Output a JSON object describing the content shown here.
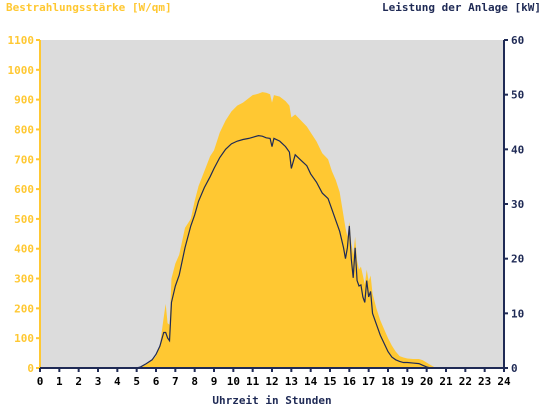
{
  "chart_data": {
    "type": "area",
    "left_axis_label": "Bestrahlungsstärke [W/qm]",
    "right_axis_label": "Leistung der Anlage [kW]",
    "xlabel": "Uhrzeit in Stunden",
    "xlim": [
      0,
      24
    ],
    "ylim_left": [
      0,
      1100
    ],
    "ylim_right": [
      0,
      60
    ],
    "x_ticks": [
      "0",
      "1",
      "2",
      "3",
      "4",
      "5",
      "6",
      "7",
      "8",
      "9",
      "10",
      "11",
      "12",
      "13",
      "14",
      "15",
      "16",
      "17",
      "18",
      "19",
      "20",
      "21",
      "22",
      "23",
      "24"
    ],
    "y_ticks_left": [
      "0",
      "100",
      "200",
      "300",
      "400",
      "500",
      "600",
      "700",
      "800",
      "900",
      "1000",
      "1100"
    ],
    "y_ticks_right": [
      "0",
      "10",
      "20",
      "30",
      "40",
      "50",
      "60"
    ],
    "grid": false,
    "colors": {
      "irradiance_fill": "#FFC832",
      "power_line": "#1F2A55",
      "plot_background": "#DCDCDC",
      "left_axis": "#FFC832",
      "right_axis": "#1F2A55"
    },
    "series": [
      {
        "axis": "left",
        "style": "area",
        "points": [
          [
            0,
            0
          ],
          [
            5.0,
            0
          ],
          [
            5.2,
            3
          ],
          [
            5.5,
            12
          ],
          [
            5.8,
            25
          ],
          [
            6.0,
            40
          ],
          [
            6.2,
            75
          ],
          [
            6.4,
            170
          ],
          [
            6.5,
            215
          ],
          [
            6.6,
            150
          ],
          [
            6.7,
            145
          ],
          [
            6.8,
            300
          ],
          [
            7.0,
            350
          ],
          [
            7.2,
            380
          ],
          [
            7.5,
            470
          ],
          [
            7.8,
            500
          ],
          [
            8.0,
            560
          ],
          [
            8.2,
            610
          ],
          [
            8.5,
            660
          ],
          [
            8.8,
            710
          ],
          [
            9.0,
            730
          ],
          [
            9.3,
            790
          ],
          [
            9.6,
            830
          ],
          [
            9.9,
            860
          ],
          [
            10.2,
            880
          ],
          [
            10.5,
            890
          ],
          [
            10.8,
            905
          ],
          [
            11.0,
            915
          ],
          [
            11.3,
            920
          ],
          [
            11.5,
            925
          ],
          [
            11.7,
            923
          ],
          [
            11.9,
            918
          ],
          [
            12.0,
            890
          ],
          [
            12.1,
            915
          ],
          [
            12.4,
            910
          ],
          [
            12.7,
            895
          ],
          [
            12.9,
            880
          ],
          [
            13.0,
            840
          ],
          [
            13.2,
            850
          ],
          [
            13.5,
            830
          ],
          [
            13.8,
            810
          ],
          [
            14.0,
            790
          ],
          [
            14.3,
            760
          ],
          [
            14.6,
            720
          ],
          [
            14.9,
            700
          ],
          [
            15.1,
            660
          ],
          [
            15.3,
            630
          ],
          [
            15.5,
            590
          ],
          [
            15.7,
            510
          ],
          [
            15.8,
            470
          ],
          [
            15.9,
            440
          ],
          [
            16.0,
            490
          ],
          [
            16.1,
            420
          ],
          [
            16.2,
            380
          ],
          [
            16.3,
            440
          ],
          [
            16.4,
            360
          ],
          [
            16.5,
            330
          ],
          [
            16.6,
            340
          ],
          [
            16.7,
            310
          ],
          [
            16.8,
            280
          ],
          [
            16.9,
            330
          ],
          [
            17.0,
            290
          ],
          [
            17.1,
            310
          ],
          [
            17.2,
            250
          ],
          [
            17.4,
            200
          ],
          [
            17.6,
            160
          ],
          [
            17.8,
            130
          ],
          [
            18.0,
            100
          ],
          [
            18.2,
            75
          ],
          [
            18.4,
            55
          ],
          [
            18.6,
            40
          ],
          [
            18.8,
            35
          ],
          [
            19.0,
            32
          ],
          [
            19.3,
            30
          ],
          [
            19.6,
            30
          ],
          [
            19.8,
            26
          ],
          [
            20.0,
            18
          ],
          [
            20.2,
            10
          ],
          [
            20.4,
            3
          ],
          [
            20.5,
            0
          ],
          [
            24,
            0
          ]
        ]
      },
      {
        "axis": "right",
        "style": "line",
        "points": [
          [
            0,
            0
          ],
          [
            5.0,
            0
          ],
          [
            5.2,
            0.2
          ],
          [
            5.5,
            0.8
          ],
          [
            5.8,
            1.5
          ],
          [
            6.0,
            2.5
          ],
          [
            6.2,
            4
          ],
          [
            6.4,
            6.5
          ],
          [
            6.5,
            6.5
          ],
          [
            6.6,
            5.5
          ],
          [
            6.7,
            5.0
          ],
          [
            6.8,
            12
          ],
          [
            7.0,
            15
          ],
          [
            7.2,
            17
          ],
          [
            7.5,
            22
          ],
          [
            7.8,
            26
          ],
          [
            8.0,
            28
          ],
          [
            8.2,
            30.5
          ],
          [
            8.5,
            33
          ],
          [
            8.8,
            35
          ],
          [
            9.0,
            36.5
          ],
          [
            9.3,
            38.5
          ],
          [
            9.6,
            40
          ],
          [
            9.9,
            41
          ],
          [
            10.2,
            41.5
          ],
          [
            10.5,
            41.8
          ],
          [
            10.8,
            42
          ],
          [
            11.0,
            42.2
          ],
          [
            11.3,
            42.5
          ],
          [
            11.5,
            42.4
          ],
          [
            11.7,
            42.1
          ],
          [
            11.9,
            42
          ],
          [
            12.0,
            40.5
          ],
          [
            12.1,
            42
          ],
          [
            12.4,
            41.5
          ],
          [
            12.7,
            40.5
          ],
          [
            12.9,
            39.5
          ],
          [
            13.0,
            36.5
          ],
          [
            13.2,
            39
          ],
          [
            13.5,
            38
          ],
          [
            13.8,
            37
          ],
          [
            14.0,
            35.5
          ],
          [
            14.3,
            34
          ],
          [
            14.6,
            32
          ],
          [
            14.9,
            31
          ],
          [
            15.1,
            29
          ],
          [
            15.3,
            27
          ],
          [
            15.5,
            25
          ],
          [
            15.7,
            22
          ],
          [
            15.8,
            20
          ],
          [
            15.9,
            22
          ],
          [
            16.0,
            26
          ],
          [
            16.1,
            20
          ],
          [
            16.2,
            16.5
          ],
          [
            16.3,
            22
          ],
          [
            16.4,
            16
          ],
          [
            16.5,
            15
          ],
          [
            16.6,
            15.2
          ],
          [
            16.7,
            13
          ],
          [
            16.8,
            12
          ],
          [
            16.9,
            16
          ],
          [
            17.0,
            13
          ],
          [
            17.1,
            14
          ],
          [
            17.2,
            10
          ],
          [
            17.4,
            8
          ],
          [
            17.6,
            6
          ],
          [
            17.8,
            4.5
          ],
          [
            18.0,
            3
          ],
          [
            18.2,
            2
          ],
          [
            18.4,
            1.5
          ],
          [
            18.6,
            1.2
          ],
          [
            18.8,
            1.0
          ],
          [
            19.0,
            1.0
          ],
          [
            19.3,
            0.9
          ],
          [
            19.6,
            0.8
          ],
          [
            19.8,
            0.5
          ],
          [
            20.0,
            0.2
          ],
          [
            20.2,
            0
          ],
          [
            24,
            0
          ]
        ]
      }
    ]
  }
}
